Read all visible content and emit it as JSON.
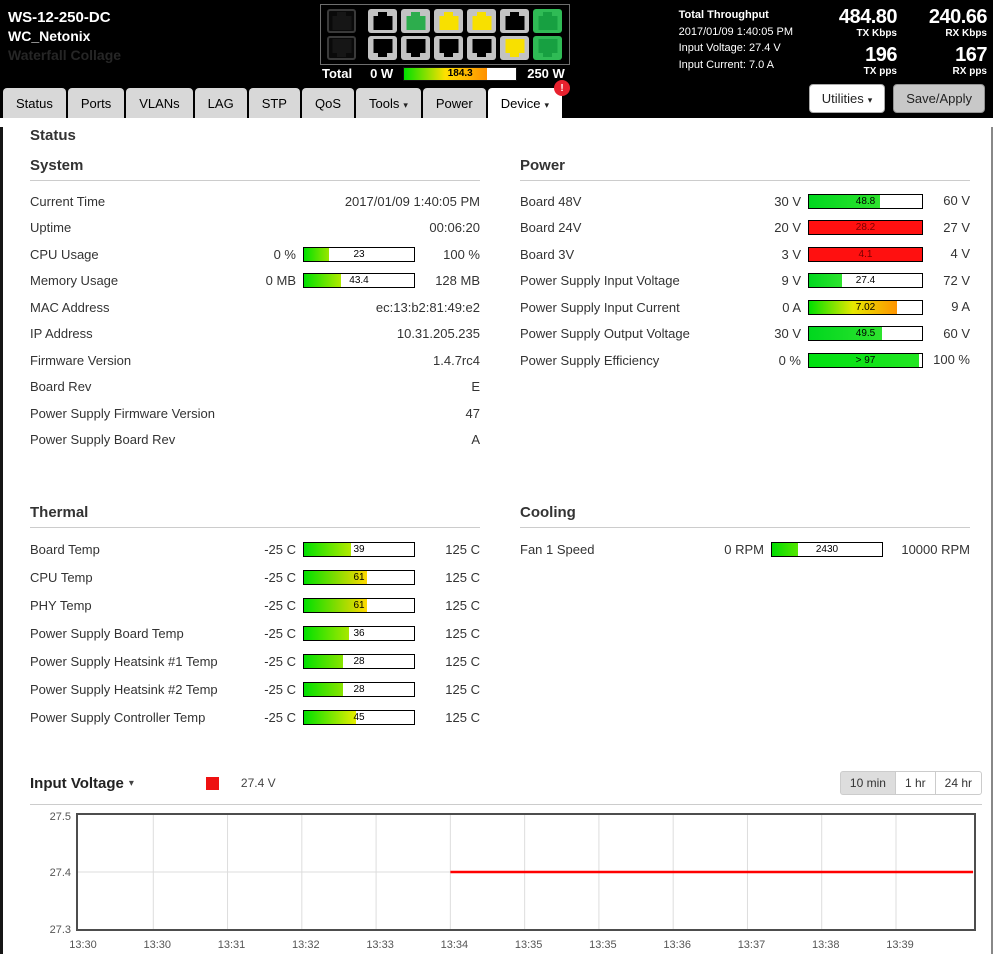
{
  "header": {
    "model": "WS-12-250-DC",
    "hostname": "WC_Netonix",
    "watermark": "Waterfall Collage",
    "switch_panel": {
      "ports_top": [
        "dim",
        "off",
        "green",
        "yellow",
        "yellow",
        "off",
        "greenbg"
      ],
      "ports_bottom": [
        "dim",
        "off",
        "off",
        "off",
        "off",
        "yellow",
        "greenbg"
      ]
    },
    "total_power": {
      "label": "Total",
      "min": "0 W",
      "max": "250 W",
      "value": "184.3",
      "pct": 74,
      "stops": [
        "#00e000",
        "#ffe000",
        "#ff9000"
      ]
    },
    "throughput": {
      "title": "Total Throughput",
      "datetime": "2017/01/09 1:40:05 PM",
      "input_voltage": "Input Voltage: 27.4 V",
      "input_current": "Input Current: 7.0 A",
      "tx_kbps": "484.80",
      "tx_kbps_label": "TX Kbps",
      "rx_kbps": "240.66",
      "rx_kbps_label": "RX Kbps",
      "tx_pps": "196",
      "tx_pps_label": "TX pps",
      "rx_pps": "167",
      "rx_pps_label": "RX pps"
    }
  },
  "tabs": [
    {
      "label": "Status"
    },
    {
      "label": "Ports"
    },
    {
      "label": "VLANs"
    },
    {
      "label": "LAG"
    },
    {
      "label": "STP"
    },
    {
      "label": "QoS"
    },
    {
      "label": "Tools",
      "caret": true
    },
    {
      "label": "Power"
    },
    {
      "label": "Device",
      "caret": true,
      "active": true,
      "badge": "!"
    }
  ],
  "toolbar": {
    "utilities_label": "Utilities",
    "save_apply_label": "Save/Apply"
  },
  "page": {
    "title": "Status"
  },
  "sections": {
    "system": {
      "title": "System",
      "rows": [
        {
          "type": "text",
          "label": "Current Time",
          "value": "2017/01/09 1:40:05 PM"
        },
        {
          "type": "text",
          "label": "Uptime",
          "value": "00:06:20"
        },
        {
          "type": "gauge",
          "label": "CPU Usage",
          "min": "0 %",
          "max": "100 %",
          "value": "23",
          "pct": 23,
          "stops": [
            "#00e000",
            "#9ae600"
          ]
        },
        {
          "type": "gauge",
          "label": "Memory Usage",
          "min": "0 MB",
          "max": "128 MB",
          "value": "43.4",
          "pct": 34,
          "stops": [
            "#00e000",
            "#b0ea00"
          ]
        },
        {
          "type": "text",
          "label": "MAC Address",
          "value": "ec:13:b2:81:49:e2"
        },
        {
          "type": "text",
          "label": "IP Address",
          "value": "10.31.205.235"
        },
        {
          "type": "text",
          "label": "Firmware Version",
          "value": "1.4.7rc4"
        },
        {
          "type": "text",
          "label": "Board Rev",
          "value": "E"
        },
        {
          "type": "text",
          "label": "Power Supply Firmware Version",
          "value": "47"
        },
        {
          "type": "text",
          "label": "Power Supply Board Rev",
          "value": "A"
        }
      ]
    },
    "power": {
      "title": "Power",
      "rows": [
        {
          "type": "gauge",
          "label": "Board 48V",
          "min": "30 V",
          "max": "60 V",
          "value": "48.8",
          "pct": 63,
          "stops": [
            "#00d71e",
            "#2ee32e"
          ]
        },
        {
          "type": "gauge",
          "label": "Board 24V",
          "min": "20 V",
          "max": "27 V",
          "value": "28.2",
          "pct": 100,
          "stops": [
            "#ff1010",
            "#ff1010"
          ],
          "value_color": "#7a0000"
        },
        {
          "type": "gauge",
          "label": "Board 3V",
          "min": "3 V",
          "max": "4 V",
          "value": "4.1",
          "pct": 100,
          "stops": [
            "#ff1010",
            "#ff1010"
          ],
          "value_color": "#7a0000"
        },
        {
          "type": "gauge",
          "label": "Power Supply Input Voltage",
          "min": "9 V",
          "max": "72 V",
          "value": "27.4",
          "pct": 29,
          "stops": [
            "#00d71e",
            "#2ee32e"
          ]
        },
        {
          "type": "gauge",
          "label": "Power Supply Input Current",
          "min": "0 A",
          "max": "9 A",
          "value": "7.02",
          "pct": 78,
          "stops": [
            "#00e000",
            "#e6e800",
            "#ff9400"
          ]
        },
        {
          "type": "gauge",
          "label": "Power Supply Output Voltage",
          "min": "30 V",
          "max": "60 V",
          "value": "49.5",
          "pct": 65,
          "stops": [
            "#00d71e",
            "#2ee32e"
          ]
        },
        {
          "type": "gauge",
          "label": "Power Supply Efficiency",
          "min": "0 %",
          "max": "100 %",
          "value": "> 97",
          "pct": 97,
          "stops": [
            "#00e010",
            "#22e622"
          ]
        }
      ]
    },
    "thermal": {
      "title": "Thermal",
      "rows": [
        {
          "type": "gauge",
          "label": "Board Temp",
          "min": "-25 C",
          "max": "125 C",
          "value": "39",
          "pct": 43,
          "stops": [
            "#00e000",
            "#b4ea00"
          ]
        },
        {
          "type": "gauge",
          "label": "CPU Temp",
          "min": "-25 C",
          "max": "125 C",
          "value": "61",
          "pct": 57,
          "stops": [
            "#00e000",
            "#ffd900"
          ]
        },
        {
          "type": "gauge",
          "label": "PHY Temp",
          "min": "-25 C",
          "max": "125 C",
          "value": "61",
          "pct": 57,
          "stops": [
            "#00e000",
            "#ffd900"
          ]
        },
        {
          "type": "gauge",
          "label": "Power Supply Board Temp",
          "min": "-25 C",
          "max": "125 C",
          "value": "36",
          "pct": 41,
          "stops": [
            "#00e000",
            "#a8e800"
          ]
        },
        {
          "type": "gauge",
          "label": "Power Supply Heatsink #1 Temp",
          "min": "-25 C",
          "max": "125 C",
          "value": "28",
          "pct": 35,
          "stops": [
            "#00e000",
            "#8ae400"
          ]
        },
        {
          "type": "gauge",
          "label": "Power Supply Heatsink #2 Temp",
          "min": "-25 C",
          "max": "125 C",
          "value": "28",
          "pct": 35,
          "stops": [
            "#00e000",
            "#8ae400"
          ]
        },
        {
          "type": "gauge",
          "label": "Power Supply Controller Temp",
          "min": "-25 C",
          "max": "125 C",
          "value": "45",
          "pct": 47,
          "stops": [
            "#00e000",
            "#e6ee00"
          ]
        }
      ]
    },
    "cooling": {
      "title": "Cooling",
      "rows": [
        {
          "type": "gauge",
          "label": "Fan 1 Speed",
          "min": "0 RPM",
          "max": "10000 RPM",
          "value": "2430",
          "pct": 24,
          "stops": [
            "#00dd00",
            "#55e600"
          ]
        }
      ]
    }
  },
  "chart": {
    "title": "Input Voltage",
    "legend_color": "#ee1111",
    "legend_value": "27.4 V",
    "ranges": [
      "10 min",
      "1 hr",
      "24 hr"
    ],
    "active_range": "10 min"
  },
  "chart_data": {
    "type": "line",
    "title": "Input Voltage",
    "x_ticks": [
      "13:30",
      "13:30",
      "13:31",
      "13:32",
      "13:33",
      "13:34",
      "13:35",
      "13:35",
      "13:36",
      "13:37",
      "13:38",
      "13:39"
    ],
    "y_ticks": [
      "27.5",
      "27.4",
      "27.3"
    ],
    "ylim": [
      27.3,
      27.5
    ],
    "grid": true,
    "series": [
      {
        "name": "Input Voltage",
        "color": "#ff0000",
        "value": 27.4,
        "start_tick_index": 5,
        "extends_to_right_edge": true,
        "points": [
          {
            "t": "13:34",
            "v": 27.4
          },
          {
            "t": "13:40",
            "v": 27.4
          }
        ]
      }
    ]
  }
}
